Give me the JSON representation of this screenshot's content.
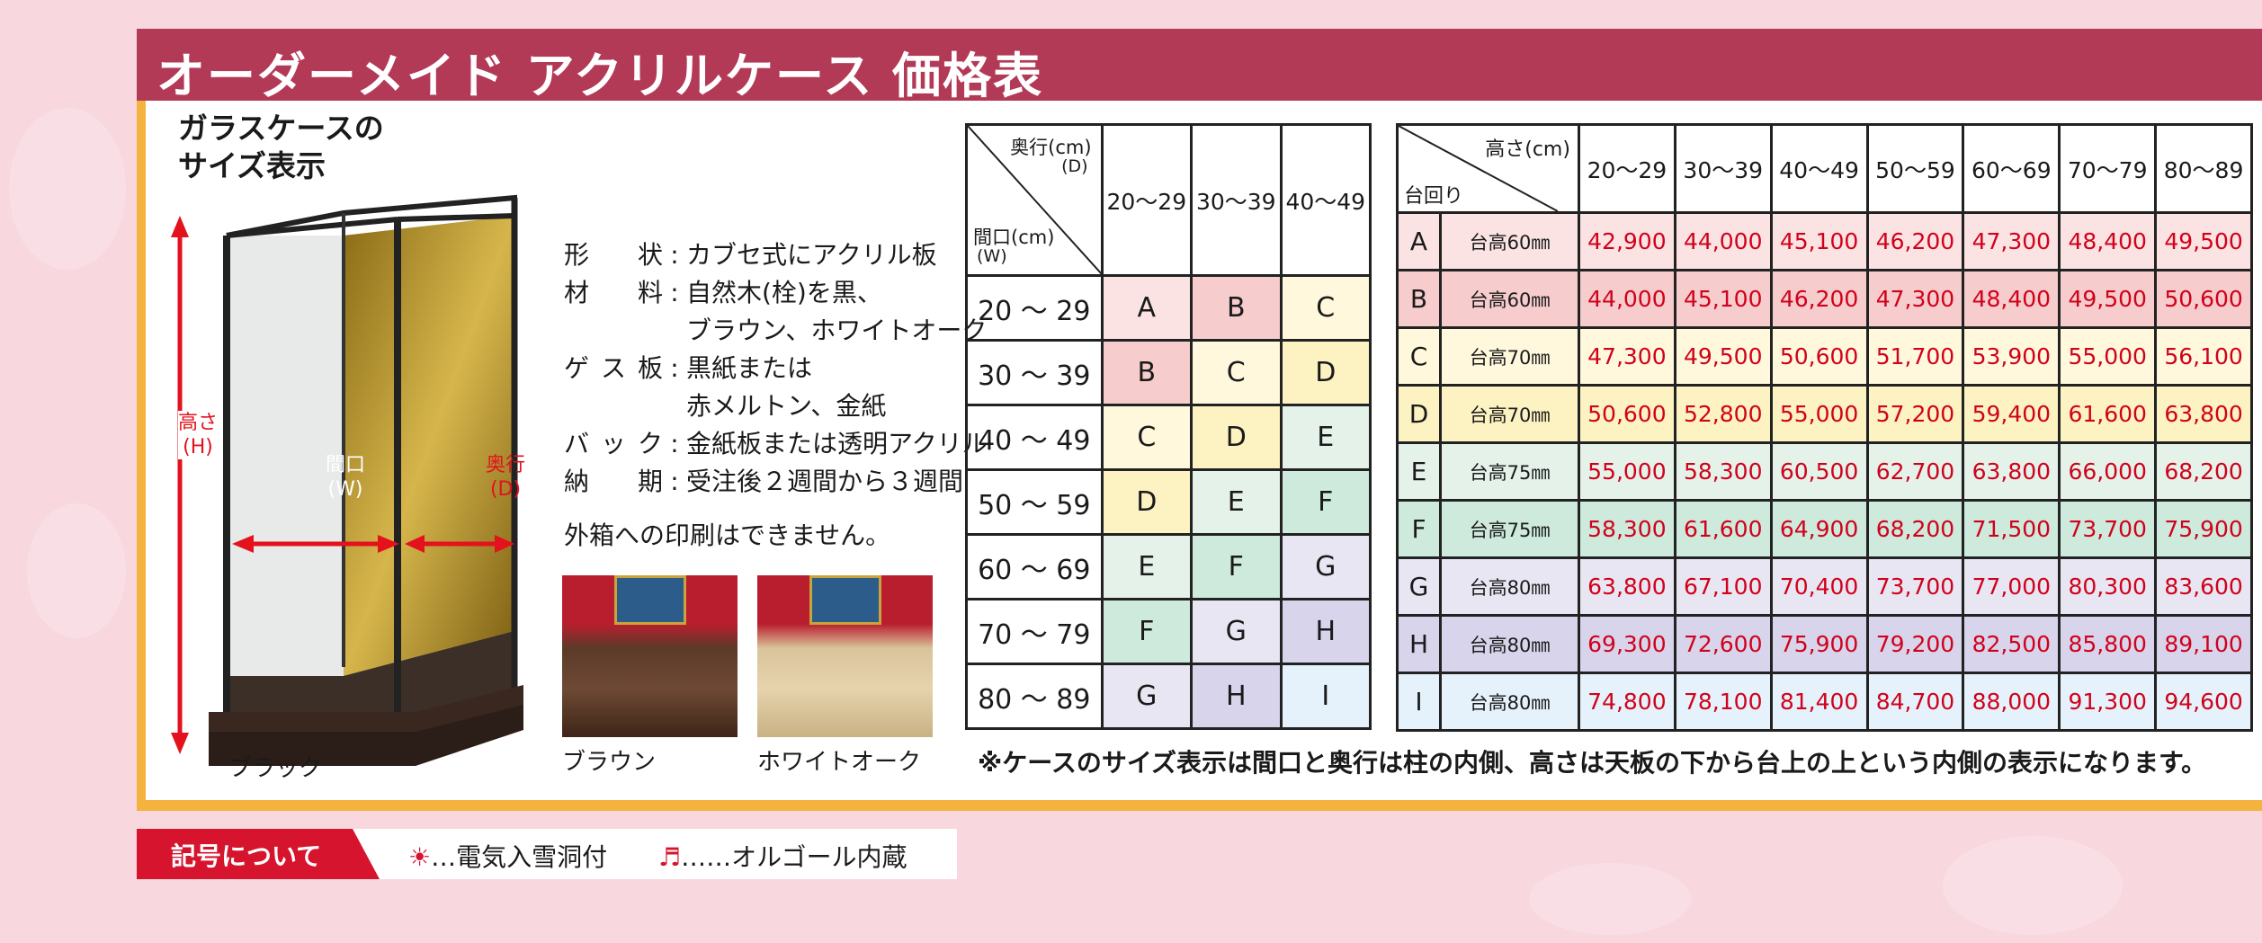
{
  "title": "オーダーメイド アクリルケース 価格表",
  "case_section": {
    "heading_line1": "ガラスケースの",
    "heading_line2": "サイズ表示",
    "label_height": "高さ\n(H)",
    "label_width": "間口\n(W)",
    "label_depth": "奥行\n(D)",
    "black_label": "ブラック"
  },
  "specs": [
    {
      "label": "形 状",
      "value": "カブセ式にアクリル板"
    },
    {
      "label": "材 料",
      "value": "自然木(栓)を黒、"
    },
    {
      "label": "",
      "value": "ブラウン、ホワイトオーク"
    },
    {
      "label": "ゲス板",
      "value": "黒紙または"
    },
    {
      "label": "",
      "value": "赤メルトン、金紙"
    },
    {
      "label": "バック",
      "value": "金紙板または透明アクリル"
    },
    {
      "label": "納 期",
      "value": "受注後２週間から３週間"
    }
  ],
  "print_note": "外箱への印刷はできません。",
  "photos": [
    {
      "label": "ブラウン"
    },
    {
      "label": "ホワイトオーク"
    }
  ],
  "size_table": {
    "corner_depth": "奥行(cm)",
    "corner_depth_sub": "(D)",
    "corner_width": "間口(cm)",
    "corner_width_sub": "(W)",
    "columns": [
      "20〜29",
      "30〜39",
      "40〜49"
    ],
    "rows": [
      {
        "label": "20 〜 29",
        "cells": [
          "A",
          "B",
          "C"
        ]
      },
      {
        "label": "30 〜 39",
        "cells": [
          "B",
          "C",
          "D"
        ]
      },
      {
        "label": "40 〜 49",
        "cells": [
          "C",
          "D",
          "E"
        ]
      },
      {
        "label": "50 〜 59",
        "cells": [
          "D",
          "E",
          "F"
        ]
      },
      {
        "label": "60 〜 69",
        "cells": [
          "E",
          "F",
          "G"
        ]
      },
      {
        "label": "70 〜 79",
        "cells": [
          "F",
          "G",
          "H"
        ]
      },
      {
        "label": "80 〜 89",
        "cells": [
          "G",
          "H",
          "I"
        ]
      }
    ]
  },
  "price_table": {
    "corner_height": "高さ(cm)",
    "corner_base": "台回り",
    "columns": [
      "20〜29",
      "30〜39",
      "40〜49",
      "50〜59",
      "60〜69",
      "70〜79",
      "80〜89"
    ],
    "rows": [
      {
        "grade": "A",
        "base": "台高60㎜",
        "prices": [
          "42,900",
          "44,000",
          "45,100",
          "46,200",
          "47,300",
          "48,400",
          "49,500"
        ]
      },
      {
        "grade": "B",
        "base": "台高60㎜",
        "prices": [
          "44,000",
          "45,100",
          "46,200",
          "47,300",
          "48,400",
          "49,500",
          "50,600"
        ]
      },
      {
        "grade": "C",
        "base": "台高70㎜",
        "prices": [
          "47,300",
          "49,500",
          "50,600",
          "51,700",
          "53,900",
          "55,000",
          "56,100"
        ]
      },
      {
        "grade": "D",
        "base": "台高70㎜",
        "prices": [
          "50,600",
          "52,800",
          "55,000",
          "57,200",
          "59,400",
          "61,600",
          "63,800"
        ]
      },
      {
        "grade": "E",
        "base": "台高75㎜",
        "prices": [
          "55,000",
          "58,300",
          "60,500",
          "62,700",
          "63,800",
          "66,000",
          "68,200"
        ]
      },
      {
        "grade": "F",
        "base": "台高75㎜",
        "prices": [
          "58,300",
          "61,600",
          "64,900",
          "68,200",
          "71,500",
          "73,700",
          "75,900"
        ]
      },
      {
        "grade": "G",
        "base": "台高80㎜",
        "prices": [
          "63,800",
          "67,100",
          "70,400",
          "73,700",
          "77,000",
          "80,300",
          "83,600"
        ]
      },
      {
        "grade": "H",
        "base": "台高80㎜",
        "prices": [
          "69,300",
          "72,600",
          "75,900",
          "79,200",
          "82,500",
          "85,800",
          "89,100"
        ]
      },
      {
        "grade": "I",
        "base": "台高80㎜",
        "prices": [
          "74,800",
          "78,100",
          "81,400",
          "84,700",
          "88,000",
          "91,300",
          "94,600"
        ]
      }
    ]
  },
  "grade_colors": {
    "A": "#fbe3e3",
    "B": "#f6cccd",
    "C": "#fff8dc",
    "D": "#fdf3c2",
    "E": "#e4f2ea",
    "F": "#cdeadd",
    "G": "#e8e6f3",
    "H": "#d8d4ec",
    "I": "#e6f2fb"
  },
  "footnote": "※ケースのサイズ表示は間口と奥行は柱の内側、高さは天板の下から台上の上という内側の表示になります。",
  "legend": {
    "tag": "記号について",
    "items": [
      {
        "icon": "sun-icon",
        "symbol": "☀",
        "text": "…電気入雪洞付"
      },
      {
        "icon": "music-note-icon",
        "symbol": "♬",
        "text": "……オルゴール内蔵"
      }
    ]
  }
}
